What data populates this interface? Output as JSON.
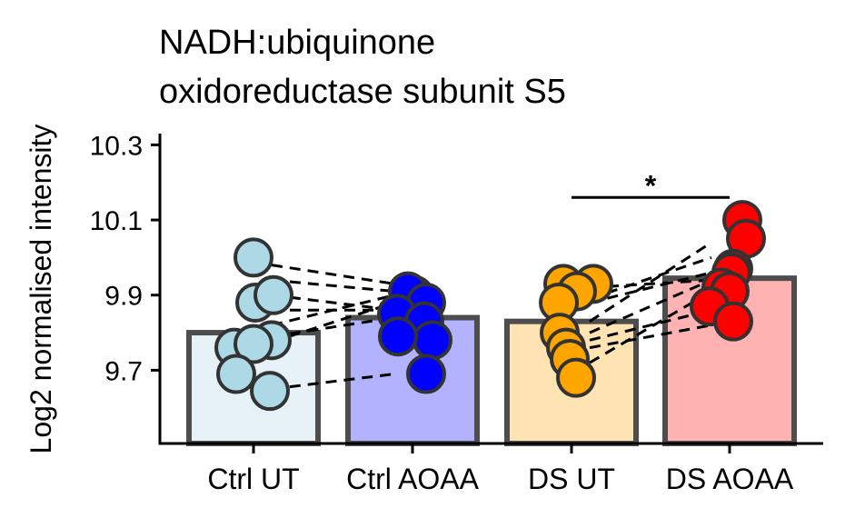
{
  "chart_data": {
    "type": "bar",
    "title": [
      "NADH:ubiquinone",
      "oxidoreductase subunit S5"
    ],
    "xlabel": "",
    "ylabel": "Log2 normalised intensity",
    "ylim": [
      9.505,
      10.33
    ],
    "yticks": [
      9.7,
      9.9,
      10.1,
      10.3
    ],
    "ytick_labels": [
      "9.7",
      "9.9",
      "10.1",
      "10.3"
    ],
    "categories": [
      "Ctrl UT",
      "Ctrl AOAA",
      "DS UT",
      "DS AOAA"
    ],
    "values": [
      9.8,
      9.84,
      9.83,
      9.945
    ],
    "bar_fill_colors": [
      "#e6f2f8",
      "#b2b2fe",
      "#ffe3b2",
      "#feb2b2"
    ],
    "point_colors": [
      "#add8e6",
      "#0000ff",
      "#ffa500",
      "#ff0000"
    ],
    "points": [
      [
        10.0,
        9.88,
        9.9,
        9.78,
        9.76,
        9.77,
        9.69,
        9.645
      ],
      [
        9.9,
        9.91,
        9.88,
        9.85,
        9.83,
        9.78,
        9.79,
        9.69
      ],
      [
        9.93,
        9.93,
        9.91,
        9.88,
        9.8,
        9.76,
        9.73,
        9.68
      ],
      [
        10.1,
        10.05,
        9.97,
        9.96,
        9.92,
        9.91,
        9.87,
        9.83
      ]
    ],
    "pairs": [
      {
        "from": 0,
        "y1": 9.98,
        "to": 1,
        "y2": 9.93
      },
      {
        "from": 0,
        "y1": 9.94,
        "to": 1,
        "y2": 9.91
      },
      {
        "from": 0,
        "y1": 9.9,
        "to": 1,
        "y2": 9.86
      },
      {
        "from": 0,
        "y1": 9.86,
        "to": 1,
        "y2": 9.86
      },
      {
        "from": 0,
        "y1": 9.82,
        "to": 1,
        "y2": 9.9
      },
      {
        "from": 0,
        "y1": 9.79,
        "to": 1,
        "y2": 9.84
      },
      {
        "from": 0,
        "y1": 9.775,
        "to": 1,
        "y2": 9.88
      },
      {
        "from": 0,
        "y1": 9.65,
        "to": 1,
        "y2": 9.69
      },
      {
        "from": 2,
        "y1": 9.92,
        "to": 3,
        "y2": 9.94
      },
      {
        "from": 2,
        "y1": 9.88,
        "to": 3,
        "y2": 9.96
      },
      {
        "from": 2,
        "y1": 9.89,
        "to": 3,
        "y2": 10.0
      },
      {
        "from": 2,
        "y1": 9.83,
        "to": 3,
        "y2": 10.04
      },
      {
        "from": 2,
        "y1": 9.8,
        "to": 3,
        "y2": 9.94
      },
      {
        "from": 2,
        "y1": 9.78,
        "to": 3,
        "y2": 9.86
      },
      {
        "from": 2,
        "y1": 9.76,
        "to": 3,
        "y2": 9.82
      },
      {
        "from": 2,
        "y1": 9.72,
        "to": 3,
        "y2": 9.91
      }
    ],
    "significance": {
      "from": "DS UT",
      "to": "DS AOAA",
      "y": 10.16,
      "label": "*"
    }
  }
}
